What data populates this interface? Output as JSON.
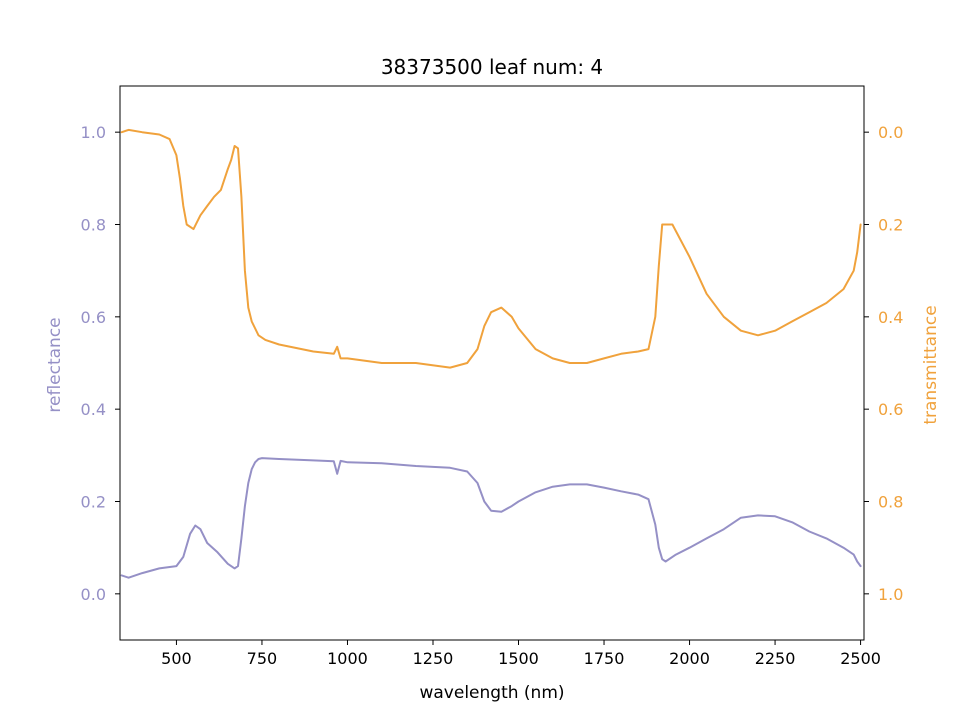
{
  "chart_data": {
    "type": "line",
    "title": "38373500 leaf num: 4",
    "xlabel": "wavelength (nm)",
    "ylabel_left": "reflectance",
    "ylabel_right": "transmittance",
    "xlim": [
      335,
      2510
    ],
    "ylim_left": [
      -0.1,
      1.1
    ],
    "ylim_right": [
      1.1,
      -0.1
    ],
    "right_axis_inverted": true,
    "x_ticks": [
      500,
      750,
      1000,
      1250,
      1500,
      1750,
      2000,
      2250,
      2500
    ],
    "x_tick_labels": [
      "500",
      "750",
      "1000",
      "1250",
      "1500",
      "1750",
      "2000",
      "2250",
      "2500"
    ],
    "y_left_ticks": [
      0.0,
      0.2,
      0.4,
      0.6,
      0.8,
      1.0
    ],
    "y_left_tick_labels": [
      "0.0",
      "0.2",
      "0.4",
      "0.6",
      "0.8",
      "1.0"
    ],
    "y_right_ticks": [
      0.0,
      0.2,
      0.4,
      0.6,
      0.8,
      1.0
    ],
    "y_right_tick_labels": [
      "0.0",
      "0.2",
      "0.4",
      "0.6",
      "0.8",
      "1.0"
    ],
    "grid": false,
    "legend": "none",
    "colors": {
      "reflectance": "#9590c6",
      "transmittance": "#f0a23c",
      "axis": "#000000"
    },
    "series": [
      {
        "axis": "left",
        "color": "#9590c6",
        "x": [
          340,
          360,
          400,
          450,
          500,
          520,
          540,
          555,
          570,
          590,
          620,
          650,
          670,
          680,
          690,
          700,
          710,
          720,
          730,
          740,
          750,
          800,
          900,
          960,
          970,
          980,
          1000,
          1100,
          1200,
          1300,
          1350,
          1380,
          1400,
          1420,
          1450,
          1480,
          1500,
          1550,
          1600,
          1650,
          1700,
          1750,
          1800,
          1850,
          1880,
          1900,
          1910,
          1920,
          1930,
          1960,
          2000,
          2050,
          2100,
          2150,
          2200,
          2250,
          2300,
          2350,
          2400,
          2450,
          2480,
          2490,
          2500
        ],
        "y": [
          0.04,
          0.035,
          0.045,
          0.055,
          0.06,
          0.08,
          0.13,
          0.148,
          0.14,
          0.11,
          0.09,
          0.065,
          0.055,
          0.06,
          0.12,
          0.19,
          0.24,
          0.27,
          0.285,
          0.292,
          0.294,
          0.292,
          0.289,
          0.287,
          0.26,
          0.288,
          0.285,
          0.283,
          0.277,
          0.273,
          0.265,
          0.24,
          0.2,
          0.18,
          0.178,
          0.19,
          0.2,
          0.22,
          0.232,
          0.237,
          0.237,
          0.23,
          0.222,
          0.215,
          0.205,
          0.15,
          0.1,
          0.075,
          0.07,
          0.085,
          0.1,
          0.12,
          0.14,
          0.165,
          0.17,
          0.168,
          0.155,
          0.135,
          0.12,
          0.1,
          0.085,
          0.07,
          0.06
        ]
      },
      {
        "axis": "right",
        "color": "#f0a23c",
        "x": [
          340,
          360,
          400,
          450,
          480,
          500,
          510,
          520,
          530,
          550,
          570,
          590,
          610,
          630,
          650,
          660,
          670,
          680,
          690,
          700,
          710,
          720,
          740,
          760,
          800,
          900,
          960,
          970,
          980,
          1000,
          1100,
          1200,
          1300,
          1350,
          1380,
          1400,
          1420,
          1450,
          1480,
          1500,
          1550,
          1600,
          1650,
          1700,
          1750,
          1800,
          1850,
          1880,
          1900,
          1910,
          1920,
          1950,
          2000,
          2050,
          2100,
          2150,
          2200,
          2250,
          2300,
          2350,
          2400,
          2450,
          2480,
          2490,
          2500
        ],
        "y": [
          0.0,
          -0.005,
          0.0,
          0.005,
          0.015,
          0.05,
          0.1,
          0.16,
          0.2,
          0.21,
          0.18,
          0.16,
          0.14,
          0.125,
          0.08,
          0.06,
          0.03,
          0.035,
          0.14,
          0.3,
          0.38,
          0.41,
          0.44,
          0.45,
          0.46,
          0.475,
          0.48,
          0.465,
          0.49,
          0.49,
          0.5,
          0.5,
          0.51,
          0.5,
          0.47,
          0.42,
          0.39,
          0.38,
          0.4,
          0.425,
          0.47,
          0.49,
          0.5,
          0.5,
          0.49,
          0.48,
          0.475,
          0.47,
          0.4,
          0.29,
          0.2,
          0.2,
          0.27,
          0.35,
          0.4,
          0.43,
          0.44,
          0.43,
          0.41,
          0.39,
          0.37,
          0.34,
          0.3,
          0.26,
          0.2
        ]
      }
    ]
  }
}
